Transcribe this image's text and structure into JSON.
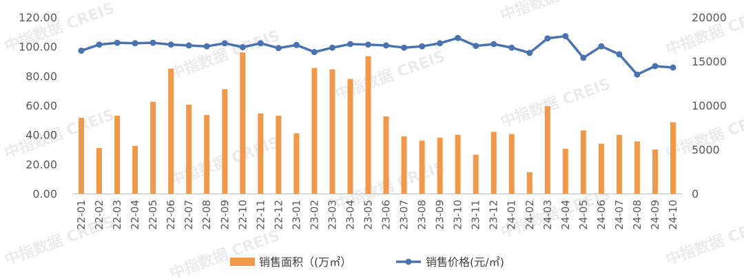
{
  "chart_data": {
    "type": "bar+line",
    "categories": [
      "22-01",
      "22-02",
      "22-03",
      "22-04",
      "22-05",
      "22-06",
      "22-07",
      "22-08",
      "22-09",
      "22-10",
      "22-11",
      "22-12",
      "23-01",
      "23-02",
      "23-03",
      "23-04",
      "23-05",
      "23-06",
      "23-07",
      "23-08",
      "23-09",
      "23-10",
      "23-11",
      "23-12",
      "24-01",
      "24-02",
      "24-03",
      "24-04",
      "24-05",
      "24-06",
      "24-07",
      "24-08",
      "24-09",
      "24-10"
    ],
    "series": [
      {
        "name": "销售面积（(万㎡）",
        "type": "bar",
        "axis": "left",
        "color": "#F0994A",
        "values": [
          51.5,
          31.0,
          53.0,
          32.5,
          62.5,
          85.0,
          60.5,
          53.5,
          71.0,
          96.0,
          54.5,
          53.0,
          41.0,
          85.5,
          84.5,
          78.0,
          93.5,
          52.5,
          39.0,
          36.0,
          38.0,
          40.0,
          26.5,
          42.0,
          40.5,
          14.5,
          59.5,
          30.5,
          43.0,
          34.0,
          40.0,
          35.5,
          30.0,
          48.5
        ]
      },
      {
        "name": "销售价格(元/㎡)",
        "type": "line",
        "axis": "right",
        "color": "#4A72AE",
        "values": [
          16200,
          16900,
          17100,
          17050,
          17100,
          16900,
          16800,
          16700,
          17050,
          16600,
          17050,
          16500,
          16850,
          16050,
          16550,
          16950,
          16900,
          16800,
          16550,
          16700,
          17050,
          17650,
          16750,
          16950,
          16550,
          15950,
          17600,
          17850,
          15400,
          16700,
          15800,
          13500,
          14450,
          14300
        ]
      }
    ],
    "y_left": {
      "min": 0,
      "max": 120,
      "ticks": [
        "0.00",
        "20.00",
        "40.00",
        "60.00",
        "80.00",
        "100.00",
        "120.00"
      ]
    },
    "y_right": {
      "min": 0,
      "max": 20000,
      "ticks": [
        "0",
        "5000",
        "10000",
        "15000",
        "20000"
      ]
    },
    "legend_position": "bottom",
    "grid": false
  },
  "watermark": {
    "text": "中指数据 CREIS"
  }
}
